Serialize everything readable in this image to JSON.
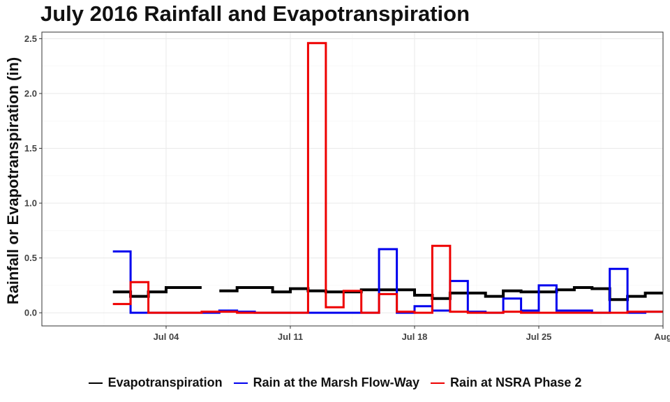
{
  "chart_data": {
    "type": "line",
    "title": "July 2016 Rainfall and Evapotranspiration",
    "xlabel": "",
    "ylabel": "Rainfall or Evapotranspiration (in)",
    "x_ticks": [
      "Jul 04",
      "Jul 11",
      "Jul 18",
      "Jul 25",
      "Aug"
    ],
    "y_ticks": [
      "0.0",
      "0.5",
      "1.0",
      "1.5",
      "2.0",
      "2.5"
    ],
    "xlim": [
      "2016-06-27",
      "2016-08-01"
    ],
    "ylim": [
      -0.12,
      2.56
    ],
    "grid": true,
    "legend_position": "bottom",
    "series": [
      {
        "name": "Evapotranspiration",
        "color": "#000000",
        "step": true,
        "x": [
          "2016-07-01",
          "2016-07-02",
          "2016-07-03",
          "2016-07-04",
          "2016-07-05",
          "2016-07-06",
          "2016-07-07",
          "2016-07-08",
          "2016-07-09",
          "2016-07-10",
          "2016-07-11",
          "2016-07-12",
          "2016-07-13",
          "2016-07-14",
          "2016-07-15",
          "2016-07-16",
          "2016-07-17",
          "2016-07-18",
          "2016-07-19",
          "2016-07-20",
          "2016-07-21",
          "2016-07-22",
          "2016-07-23",
          "2016-07-24",
          "2016-07-25",
          "2016-07-26",
          "2016-07-27",
          "2016-07-28",
          "2016-07-29",
          "2016-07-30",
          "2016-07-31"
        ],
        "values": [
          0.19,
          0.15,
          0.19,
          0.23,
          0.23,
          null,
          0.2,
          0.23,
          0.23,
          0.19,
          0.22,
          0.2,
          0.19,
          0.19,
          0.21,
          0.21,
          0.21,
          0.16,
          0.13,
          0.18,
          0.18,
          0.15,
          0.2,
          0.19,
          0.19,
          0.21,
          0.23,
          0.22,
          0.12,
          0.15,
          0.18
        ]
      },
      {
        "name": "Rain at the Marsh Flow-Way",
        "color": "#0000EE",
        "step": true,
        "x": [
          "2016-07-01",
          "2016-07-02",
          "2016-07-03",
          "2016-07-04",
          "2016-07-05",
          "2016-07-06",
          "2016-07-07",
          "2016-07-08",
          "2016-07-09",
          "2016-07-10",
          "2016-07-11",
          "2016-07-12",
          "2016-07-13",
          "2016-07-14",
          "2016-07-15",
          "2016-07-16",
          "2016-07-17",
          "2016-07-18",
          "2016-07-19",
          "2016-07-20",
          "2016-07-21",
          "2016-07-22",
          "2016-07-23",
          "2016-07-24",
          "2016-07-25",
          "2016-07-26",
          "2016-07-27",
          "2016-07-28",
          "2016-07-29",
          "2016-07-30",
          "2016-07-31"
        ],
        "values": [
          0.56,
          0.0,
          0.0,
          0.0,
          0.0,
          0.0,
          0.02,
          0.01,
          0.0,
          0.0,
          0.0,
          0.0,
          0.0,
          0.0,
          0.0,
          0.58,
          0.0,
          0.06,
          0.02,
          0.29,
          0.01,
          0.0,
          0.13,
          0.02,
          0.25,
          0.02,
          0.02,
          0.0,
          0.4,
          0.0,
          0.01
        ]
      },
      {
        "name": "Rain at NSRA Phase 2",
        "color": "#EE0000",
        "step": true,
        "x": [
          "2016-07-01",
          "2016-07-02",
          "2016-07-03",
          "2016-07-04",
          "2016-07-05",
          "2016-07-06",
          "2016-07-07",
          "2016-07-08",
          "2016-07-09",
          "2016-07-10",
          "2016-07-11",
          "2016-07-12",
          "2016-07-13",
          "2016-07-14",
          "2016-07-15",
          "2016-07-16",
          "2016-07-17",
          "2016-07-18",
          "2016-07-19",
          "2016-07-20",
          "2016-07-21",
          "2016-07-22",
          "2016-07-23",
          "2016-07-24",
          "2016-07-25",
          "2016-07-26",
          "2016-07-27",
          "2016-07-28",
          "2016-07-29",
          "2016-07-30",
          "2016-07-31"
        ],
        "values": [
          0.08,
          0.28,
          0.0,
          0.0,
          0.0,
          0.01,
          0.01,
          0.0,
          0.0,
          0.0,
          0.0,
          2.46,
          0.05,
          0.2,
          0.0,
          0.17,
          0.01,
          0.0,
          0.61,
          0.01,
          0.0,
          0.0,
          0.01,
          0.0,
          0.0,
          0.0,
          0.0,
          0.0,
          0.0,
          0.01,
          0.01
        ]
      }
    ]
  }
}
